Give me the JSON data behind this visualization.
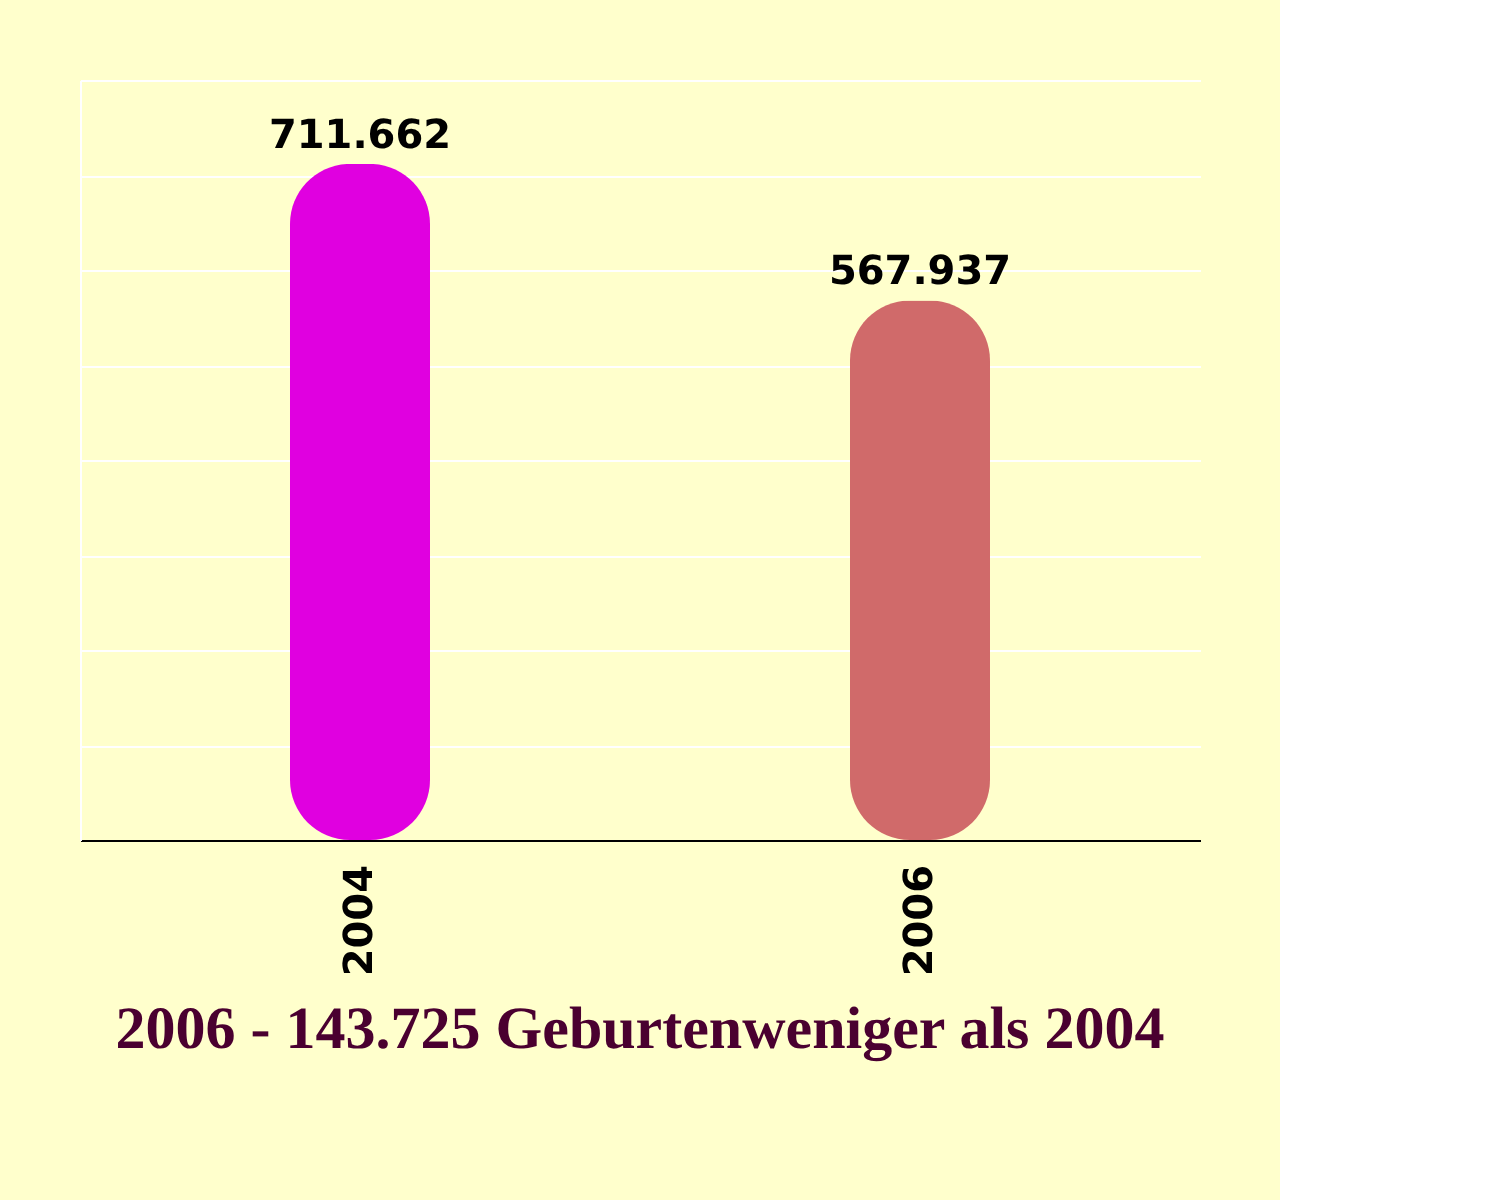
{
  "chart_data": {
    "type": "bar",
    "categories": [
      "2004",
      "2006"
    ],
    "series": [
      {
        "colors": [
          "#e000e0",
          "#d06a6a"
        ],
        "values": [
          711662,
          567937
        ],
        "value_labels": [
          "711.662",
          "567.937"
        ]
      }
    ],
    "ylim": [
      0,
      800000
    ],
    "yticks": [
      {
        "value": 0,
        "label": null
      },
      {
        "value": 100000,
        "label": null
      },
      {
        "value": 200000,
        "label": null
      },
      {
        "value": 300000,
        "label": null
      },
      {
        "value": 400000,
        "label": null
      },
      {
        "value": 500000,
        "label": null
      },
      {
        "value": 600000,
        "label": null
      },
      {
        "value": 700000,
        "label": null
      },
      {
        "value": 800000,
        "label": null
      }
    ],
    "grid": "y",
    "tick_labels": "x",
    "annotations": [
      "2006 - 143.725 Geburtenweniger als 2004"
    ]
  }
}
